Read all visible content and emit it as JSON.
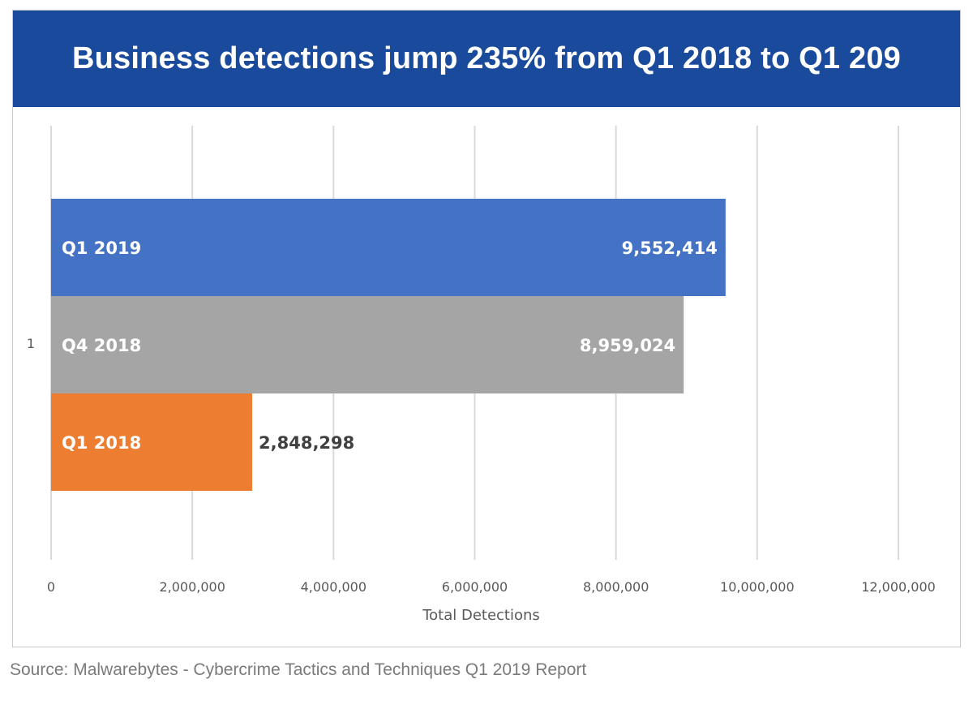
{
  "title": "Business detections jump 235% from Q1 2018 to Q1 209",
  "source": "Source: Malwarebytes - Cybercrime Tactics and Techniques Q1 2019 Report",
  "colors": {
    "banner": "#1a4a9b",
    "grid": "#d9d9d9",
    "axis_text": "#595959"
  },
  "chart_data": {
    "type": "bar",
    "orientation": "horizontal",
    "category_label": "1",
    "xlabel": "Total Detections",
    "ylabel": "",
    "xlim": [
      0,
      12000000
    ],
    "x_ticks": [
      "0",
      "2,000,000",
      "4,000,000",
      "6,000,000",
      "8,000,000",
      "10,000,000",
      "12,000,000"
    ],
    "grid": true,
    "legend": "none",
    "series": [
      {
        "name": "Q1 2019",
        "value": 9552414,
        "label": "9,552,414",
        "color": "#4472c4",
        "label_position": "inside-end"
      },
      {
        "name": "Q4 2018",
        "value": 8959024,
        "label": "8,959,024",
        "color": "#a5a5a5",
        "label_position": "inside-end"
      },
      {
        "name": "Q1 2018",
        "value": 2848298,
        "label": "2,848,298",
        "color": "#ed7d31",
        "label_position": "outside-end"
      }
    ]
  }
}
